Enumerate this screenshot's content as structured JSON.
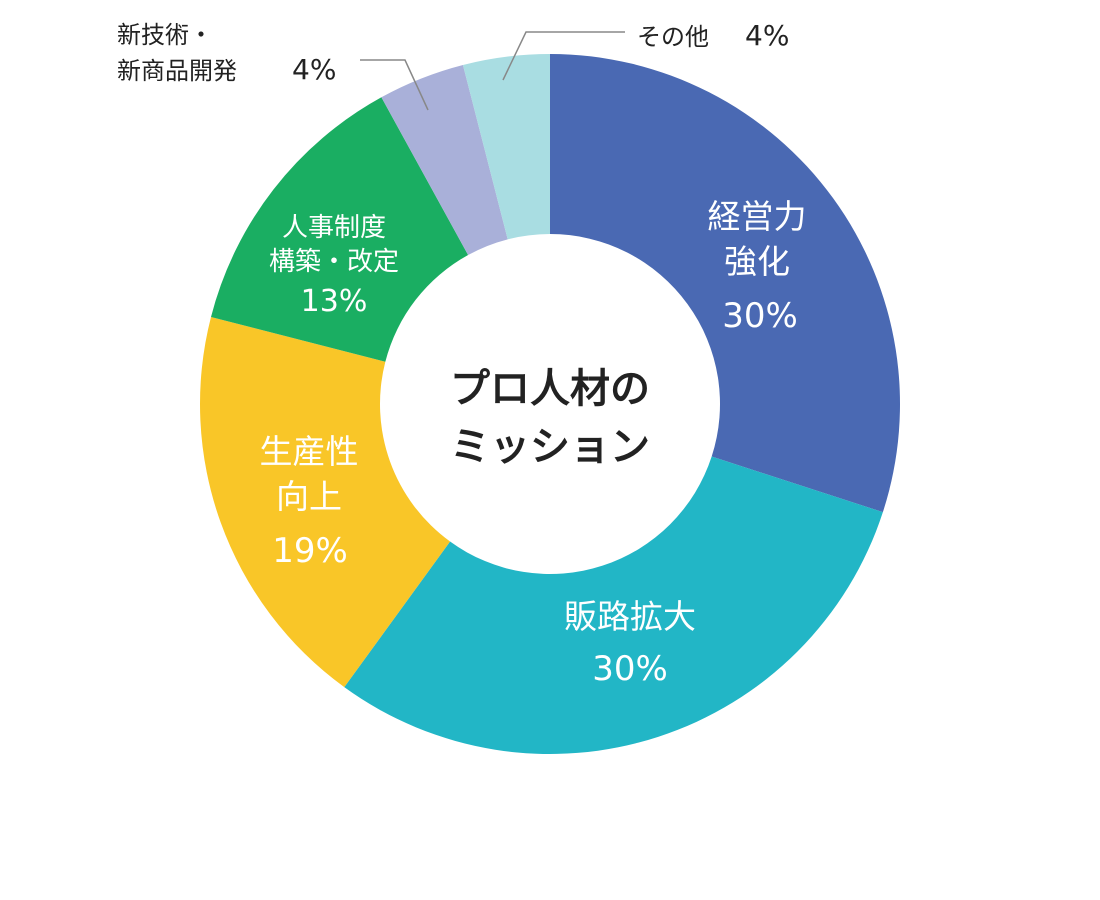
{
  "chart_data": {
    "type": "pie",
    "title": "プロ人材のミッション",
    "title_lines": [
      "プロ人材の",
      "ミッション"
    ],
    "categories": [
      "経営力強化",
      "販路拡大",
      "生産性向上",
      "人事制度構築・改定",
      "新技術・新商品開発",
      "その他"
    ],
    "values": [
      30,
      30,
      19,
      13,
      4,
      4
    ],
    "unit": "%",
    "label_lines": [
      [
        "経営力",
        "強化"
      ],
      [
        "販路拡大"
      ],
      [
        "生産性",
        "向上"
      ],
      [
        "人事制度",
        "構築・改定"
      ],
      [
        "新技術・",
        "新商品開発"
      ],
      [
        "その他"
      ]
    ],
    "value_labels": [
      "30%",
      "30%",
      "19%",
      "13%",
      "4%",
      "4%"
    ],
    "colors": [
      "#4a69b3",
      "#22b6c6",
      "#f9c628",
      "#1aae62",
      "#a9b0d9",
      "#a9dde2"
    ],
    "label_color": "#ffffff",
    "external_label_color": "#222222",
    "start": "12 o'clock, clockwise"
  }
}
